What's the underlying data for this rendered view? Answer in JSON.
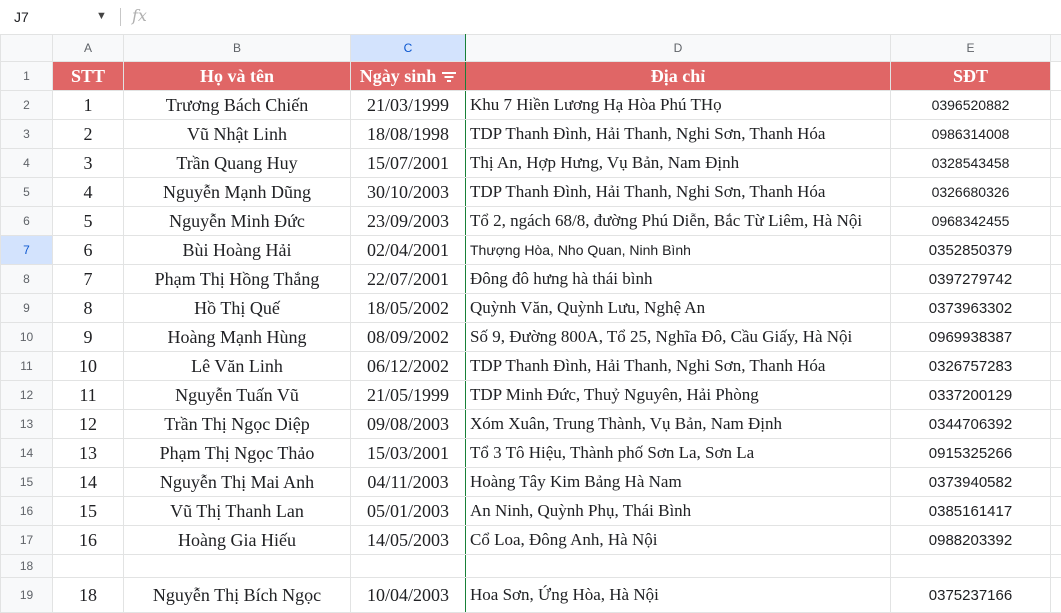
{
  "name_box": {
    "ref": "J7"
  },
  "formula_bar": {
    "fx": "fx"
  },
  "columns": [
    "A",
    "B",
    "C",
    "D",
    "E"
  ],
  "header": {
    "stt": "STT",
    "name": "Họ và tên",
    "dob": "Ngày sinh",
    "address": "Địa chỉ",
    "phone": "SĐT"
  },
  "rows": [
    {
      "num": "2",
      "stt": "1",
      "name": "Trương Bách Chiến",
      "dob": "21/03/1999",
      "address": "Khu 7 Hiền Lương Hạ Hòa Phú THọ",
      "phone": "0396520882"
    },
    {
      "num": "3",
      "stt": "2",
      "name": "Vũ Nhật Linh",
      "dob": "18/08/1998",
      "address": "TDP Thanh Đình, Hải Thanh, Nghi Sơn, Thanh Hóa",
      "phone": "0986314008"
    },
    {
      "num": "4",
      "stt": "3",
      "name": "Trần Quang Huy",
      "dob": "15/07/2001",
      "address": "Thị An, Hợp Hưng, Vụ Bản, Nam Định",
      "phone": "0328543458"
    },
    {
      "num": "5",
      "stt": "4",
      "name": "Nguyễn Mạnh Dũng",
      "dob": "30/10/2003",
      "address": "TDP Thanh Đình, Hải Thanh, Nghi Sơn, Thanh Hóa",
      "phone": "0326680326"
    },
    {
      "num": "6",
      "stt": "5",
      "name": "Nguyễn Minh Đức",
      "dob": "23/09/2003",
      "address": "Tổ 2, ngách 68/8, đường Phú Diễn, Bắc Từ Liêm, Hà Nội",
      "phone": "0968342455"
    },
    {
      "num": "7",
      "stt": "6",
      "name": "Bùi Hoàng Hải",
      "dob": "02/04/2001",
      "address": "Thượng Hòa, Nho Quan, Ninh Bình",
      "phone": "0352850379"
    },
    {
      "num": "8",
      "stt": "7",
      "name": "Phạm Thị Hồng Thắng",
      "dob": "22/07/2001",
      "address": "Đông đô hưng hà thái bình",
      "phone": "0397279742"
    },
    {
      "num": "9",
      "stt": "8",
      "name": "Hồ Thị Quế",
      "dob": "18/05/2002",
      "address": "Quỳnh Văn, Quỳnh Lưu, Nghệ An",
      "phone": "0373963302"
    },
    {
      "num": "10",
      "stt": "9",
      "name": "Hoàng Mạnh Hùng",
      "dob": "08/09/2002",
      "address": "Số 9, Đường 800A, Tổ 25, Nghĩa Đô, Cầu Giấy, Hà Nội",
      "phone": "0969938387"
    },
    {
      "num": "11",
      "stt": "10",
      "name": "Lê Văn Linh",
      "dob": "06/12/2002",
      "address": "TDP Thanh Đình, Hải Thanh, Nghi Sơn, Thanh Hóa",
      "phone": "0326757283"
    },
    {
      "num": "12",
      "stt": "11",
      "name": "Nguyễn Tuấn Vũ",
      "dob": "21/05/1999",
      "address": "TDP Minh Đức, Thuỷ Nguyên, Hải Phòng",
      "phone": "0337200129"
    },
    {
      "num": "13",
      "stt": "12",
      "name": "Trần Thị Ngọc Diệp",
      "dob": "09/08/2003",
      "address": "Xóm Xuân, Trung Thành, Vụ Bản, Nam Định",
      "phone": "0344706392"
    },
    {
      "num": "14",
      "stt": "13",
      "name": "Phạm Thị Ngọc Thảo",
      "dob": "15/03/2001",
      "address": "Tổ 3 Tô Hiệu, Thành phố Sơn La, Sơn La",
      "phone": "0915325266"
    },
    {
      "num": "15",
      "stt": "14",
      "name": "Nguyễn Thị Mai Anh",
      "dob": "04/11/2003",
      "address": "Hoàng Tây Kim Bảng Hà Nam",
      "phone": "0373940582"
    },
    {
      "num": "16",
      "stt": "15",
      "name": "Vũ Thị Thanh Lan",
      "dob": "05/01/2003",
      "address": "An Ninh, Quỳnh Phụ, Thái Bình",
      "phone": "0385161417"
    },
    {
      "num": "17",
      "stt": "16",
      "name": "Hoàng Gia Hiếu",
      "dob": "14/05/2003",
      "address": "Cổ Loa, Đông Anh, Hà Nội",
      "phone": "0988203392"
    },
    {
      "num": "18",
      "stt": "",
      "name": "",
      "dob": "",
      "address": "",
      "phone": ""
    },
    {
      "num": "19",
      "stt": "18",
      "name": "Nguyễn Thị Bích Ngọc",
      "dob": "10/04/2003",
      "address": "Hoa Sơn, Ứng Hòa, Hà Nội",
      "phone": "0375237166"
    }
  ]
}
